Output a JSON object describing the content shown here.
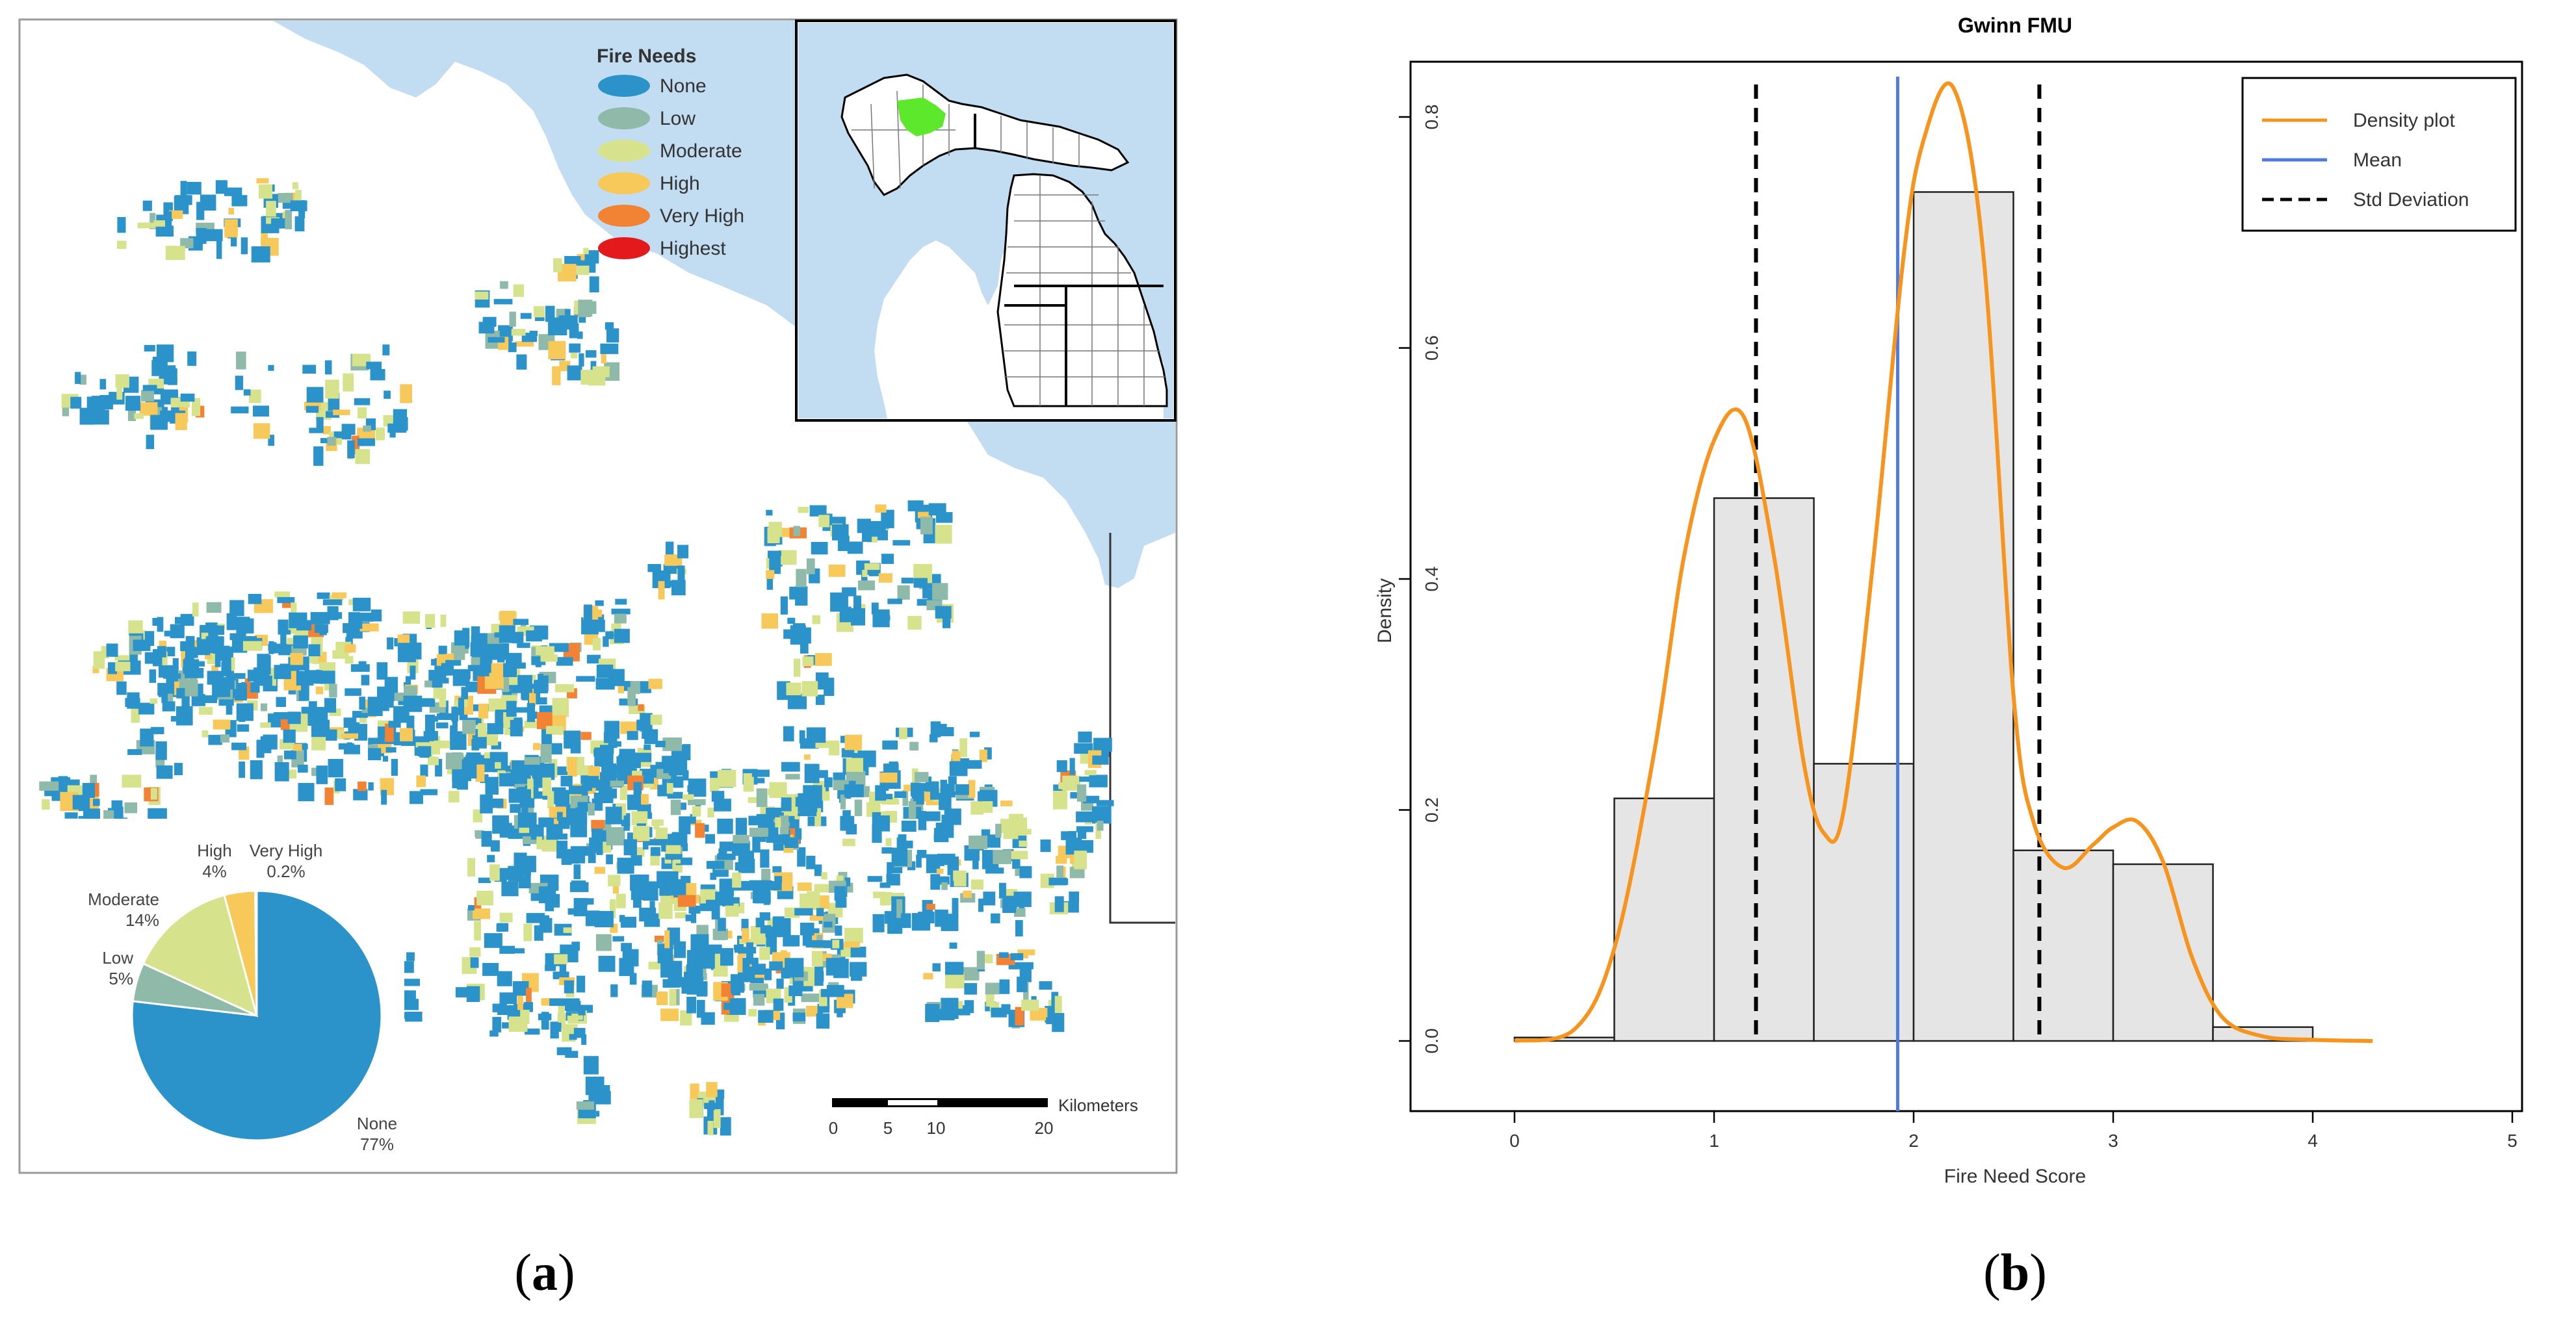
{
  "panel_a": {
    "label": "a",
    "legend": {
      "title": "Fire Needs",
      "items": [
        {
          "label": "None",
          "color": "#2b93c9"
        },
        {
          "label": "Low",
          "color": "#8fb9a8"
        },
        {
          "label": "Moderate",
          "color": "#d6e38c"
        },
        {
          "label": "High",
          "color": "#f7c85a"
        },
        {
          "label": "Very High",
          "color": "#f28335"
        },
        {
          "label": "Highest",
          "color": "#e31a1c"
        }
      ]
    },
    "inset": {
      "state_fill": "#ffffff",
      "highlight_color": "#5ee82b",
      "water_color": "#c2dcf2"
    },
    "water_color": "#c2dcf2",
    "pie": {
      "slices": [
        {
          "name": "None",
          "pct_label": "77%",
          "value": 77,
          "color": "#2b93c9"
        },
        {
          "name": "Low",
          "pct_label": "5%",
          "value": 5,
          "color": "#8fb9a8"
        },
        {
          "name": "Moderate",
          "pct_label": "14%",
          "value": 14,
          "color": "#d6e38c"
        },
        {
          "name": "High",
          "pct_label": "4%",
          "value": 4,
          "color": "#f7c85a"
        },
        {
          "name": "Very High",
          "pct_label": "0.2%",
          "value": 0.2,
          "color": "#f28335"
        }
      ]
    },
    "scalebar": {
      "unit": "Kilometers",
      "ticks": [
        "0",
        "5",
        "10",
        "20"
      ]
    }
  },
  "panel_b": {
    "label": "b",
    "chart_data": {
      "type": "bar",
      "title": "Gwinn FMU",
      "xlabel": "Fire Need Score",
      "ylabel": "Density",
      "xlim": [
        0,
        5
      ],
      "ylim": [
        0,
        0.8
      ],
      "x_ticks": [
        "0",
        "1",
        "2",
        "3",
        "4",
        "5"
      ],
      "y_ticks": [
        "0.0",
        "0.2",
        "0.4",
        "0.6",
        "0.8"
      ],
      "histogram": {
        "bin_edges": [
          0,
          0.5,
          1,
          1.5,
          2,
          2.5,
          3,
          3.5,
          4
        ],
        "values": [
          0.003,
          0.21,
          0.47,
          0.24,
          0.735,
          0.165,
          0.153,
          0.012
        ],
        "fill": "#e5e5e5"
      },
      "density": {
        "name": "Density plot",
        "color": "#f7941d",
        "x": [
          0,
          0.3,
          0.5,
          0.7,
          0.85,
          1.0,
          1.15,
          1.3,
          1.45,
          1.55,
          1.65,
          1.8,
          1.95,
          2.05,
          2.2,
          2.35,
          2.5,
          2.6,
          2.75,
          2.9,
          3.0,
          3.12,
          3.25,
          3.4,
          3.55,
          3.75,
          4.0,
          4.3
        ],
        "y": [
          0.0,
          0.01,
          0.08,
          0.25,
          0.42,
          0.52,
          0.54,
          0.42,
          0.24,
          0.18,
          0.2,
          0.42,
          0.68,
          0.78,
          0.825,
          0.68,
          0.3,
          0.19,
          0.15,
          0.17,
          0.185,
          0.19,
          0.155,
          0.07,
          0.02,
          0.004,
          0.001,
          0.0
        ]
      },
      "mean": {
        "name": "Mean",
        "value": 1.92,
        "color": "#4f7be0"
      },
      "std_lines": {
        "name": "Std Deviation",
        "values": [
          1.21,
          2.63
        ],
        "color": "#000000"
      },
      "legend_position": "top-right"
    }
  }
}
